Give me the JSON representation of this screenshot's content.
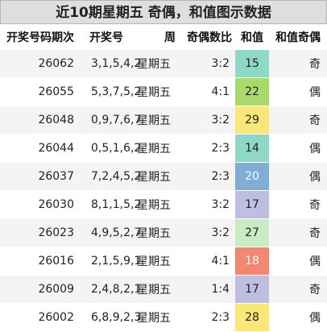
{
  "title": "近10期星期五 奇偶，和值图示数据",
  "headers": {
    "issue": "开奖号码期次",
    "numbers": "开奖号",
    "weekday": "周",
    "ratio": "奇偶数比",
    "sum": "和值",
    "parity": "和值奇偶"
  },
  "rows": [
    {
      "issue": "26062",
      "numbers": "3,1,5,4,2",
      "weekday": "星期五",
      "ratio": "3:2",
      "sum": "15",
      "sum_color": "#8ed8c8",
      "sum_text": "dark",
      "parity": "奇"
    },
    {
      "issue": "26055",
      "numbers": "5,3,7,5,2",
      "weekday": "星期五",
      "ratio": "4:1",
      "sum": "22",
      "sum_color": "#a9d96a",
      "sum_text": "dark",
      "parity": "偶"
    },
    {
      "issue": "26048",
      "numbers": "0,9,7,6,7",
      "weekday": "星期五",
      "ratio": "3:2",
      "sum": "29",
      "sum_color": "#fbe67a",
      "sum_text": "dark",
      "parity": "奇"
    },
    {
      "issue": "26044",
      "numbers": "0,5,1,6,2",
      "weekday": "星期五",
      "ratio": "2:3",
      "sum": "14",
      "sum_color": "#8ed8c8",
      "sum_text": "dark",
      "parity": "偶"
    },
    {
      "issue": "26037",
      "numbers": "7,2,4,5,2",
      "weekday": "星期五",
      "ratio": "2:3",
      "sum": "20",
      "sum_color": "#7fadd6",
      "sum_text": "light",
      "parity": "偶"
    },
    {
      "issue": "26030",
      "numbers": "8,1,1,5,2",
      "weekday": "星期五",
      "ratio": "3:2",
      "sum": "17",
      "sum_color": "#bfbde0",
      "sum_text": "dark",
      "parity": "奇"
    },
    {
      "issue": "26023",
      "numbers": "4,9,5,2,7",
      "weekday": "星期五",
      "ratio": "3:2",
      "sum": "27",
      "sum_color": "#c9ecc5",
      "sum_text": "dark",
      "parity": "奇"
    },
    {
      "issue": "26016",
      "numbers": "2,1,5,9,1",
      "weekday": "星期五",
      "ratio": "4:1",
      "sum": "18",
      "sum_color": "#f28873",
      "sum_text": "light",
      "parity": "偶"
    },
    {
      "issue": "26009",
      "numbers": "2,4,8,2,1",
      "weekday": "星期五",
      "ratio": "1:4",
      "sum": "17",
      "sum_color": "#bfbde0",
      "sum_text": "dark",
      "parity": "奇"
    },
    {
      "issue": "26002",
      "numbers": "6,8,9,2,3",
      "weekday": "星期五",
      "ratio": "2:3",
      "sum": "28",
      "sum_color": "#fbe67a",
      "sum_text": "dark",
      "parity": "偶"
    }
  ]
}
